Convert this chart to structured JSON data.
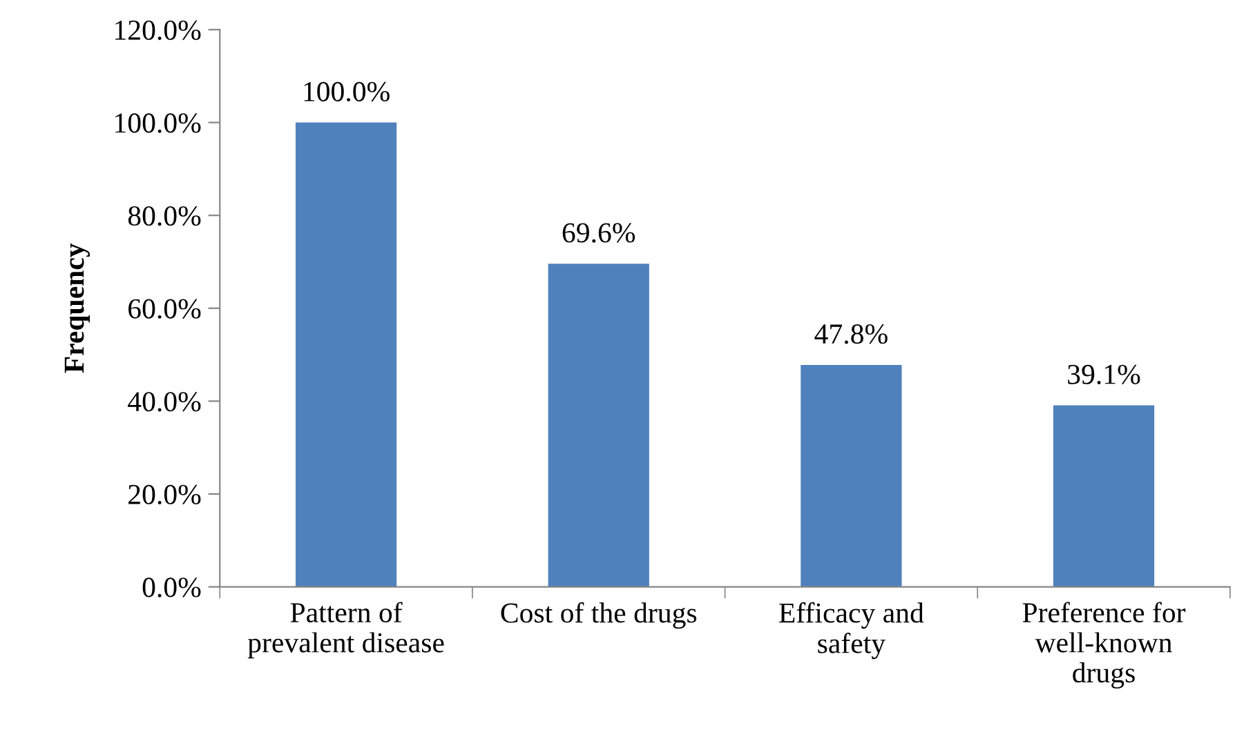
{
  "chart_data": {
    "type": "bar",
    "ylabel": "Frequency",
    "categories": [
      "Pattern of\nprevalent disease",
      "Cost of the drugs",
      "Efficacy and\nsafety",
      "Preference for\nwell-known\ndrugs"
    ],
    "values": [
      100.0,
      69.6,
      47.8,
      39.1
    ],
    "color": "#4f81bd",
    "value_labels": [
      "100.0%",
      "69.6%",
      "47.8%",
      "39.1%"
    ],
    "ylim": [
      0,
      120
    ],
    "yticks": [
      {
        "value": 0,
        "label": "0.0%"
      },
      {
        "value": 20,
        "label": "20.0%"
      },
      {
        "value": 40,
        "label": "40.0%"
      },
      {
        "value": 60,
        "label": "60.0%"
      },
      {
        "value": 80,
        "label": "80.0%"
      },
      {
        "value": 100,
        "label": "100.0%"
      },
      {
        "value": 120,
        "label": "120.0%"
      }
    ],
    "grid": false,
    "legend": false
  }
}
